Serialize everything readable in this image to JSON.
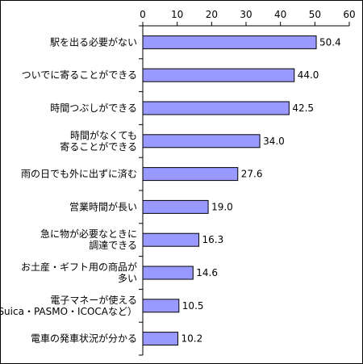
{
  "chart_data": {
    "type": "bar",
    "orientation": "horizontal",
    "categories": [
      [
        "駅を出る必要がない"
      ],
      [
        "ついでに寄ることができる"
      ],
      [
        "時間つぶしができる"
      ],
      [
        "時間がなくても",
        "寄ることができる"
      ],
      [
        "雨の日でも外に出ずに済む"
      ],
      [
        "営業時間が長い"
      ],
      [
        "急に物が必要なときに",
        "調達できる"
      ],
      [
        "お土産・ギフト用の商品が",
        "多い"
      ],
      [
        "電子マネーが使える",
        "（Suica・PASMO・ICOCAなど）"
      ],
      [
        "電車の発車状況が分かる"
      ]
    ],
    "values": [
      50.4,
      44.0,
      42.5,
      34.0,
      27.6,
      19.0,
      16.3,
      14.6,
      10.5,
      10.2
    ],
    "value_labels": [
      "50.4",
      "44.0",
      "42.5",
      "34.0",
      "27.6",
      "19.0",
      "16.3",
      "14.6",
      "10.5",
      "10.2"
    ],
    "xlim": [
      0,
      60
    ],
    "xticks": [
      0,
      10,
      20,
      30,
      40,
      50,
      60
    ],
    "x_axis_position": "top",
    "grid": false,
    "title": "",
    "xlabel": "",
    "ylabel": "",
    "bar_color": "#9999ff",
    "bar_edge_color": "#000000"
  }
}
